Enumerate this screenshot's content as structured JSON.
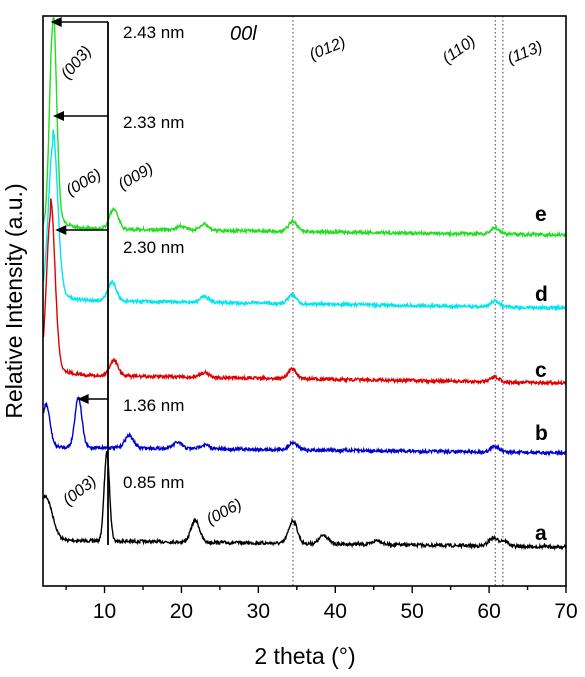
{
  "chart_data": {
    "type": "line",
    "xlabel": "2 theta (°)",
    "ylabel": "Relative Intensity (a.u.)",
    "xlim": [
      2,
      70
    ],
    "xticks": [
      "10",
      "20",
      "30",
      "40",
      "50",
      "60",
      "70"
    ],
    "grid": false,
    "colors": {
      "a": "#000000",
      "b": "#0000cc",
      "c": "#e00000",
      "d": "#00e5ee",
      "e": "#22dd22"
    },
    "series": [
      {
        "name": "a",
        "peaks": [
          {
            "x": 2.3,
            "rel": 0.5
          },
          {
            "x": 10.3,
            "rel": 1.0
          },
          {
            "x": 21.8,
            "rel": 0.25
          },
          {
            "x": 34.5,
            "rel": 0.26
          },
          {
            "x": 38.5,
            "rel": 0.1
          },
          {
            "x": 45.5,
            "rel": 0.05
          },
          {
            "x": 60.5,
            "rel": 0.09
          },
          {
            "x": 61.9,
            "rel": 0.06
          }
        ]
      },
      {
        "name": "b",
        "peaks": [
          {
            "x": 2.4,
            "rel": 0.85
          },
          {
            "x": 6.6,
            "rel": 1.0
          },
          {
            "x": 13.2,
            "rel": 0.25
          },
          {
            "x": 19.5,
            "rel": 0.12
          },
          {
            "x": 23.0,
            "rel": 0.08
          },
          {
            "x": 34.5,
            "rel": 0.15
          },
          {
            "x": 60.8,
            "rel": 0.12
          }
        ]
      },
      {
        "name": "c",
        "peaks": [
          {
            "x": 3.0,
            "rel": 1.0
          },
          {
            "x": 11.2,
            "rel": 0.1
          },
          {
            "x": 23.0,
            "rel": 0.03
          },
          {
            "x": 34.4,
            "rel": 0.06
          },
          {
            "x": 60.8,
            "rel": 0.03
          }
        ]
      },
      {
        "name": "d",
        "peaks": [
          {
            "x": 3.3,
            "rel": 1.0
          },
          {
            "x": 11.0,
            "rel": 0.12
          },
          {
            "x": 23.0,
            "rel": 0.04
          },
          {
            "x": 34.4,
            "rel": 0.06
          },
          {
            "x": 60.8,
            "rel": 0.04
          }
        ]
      },
      {
        "name": "e",
        "peaks": [
          {
            "x": 3.3,
            "rel": 1.0
          },
          {
            "x": 11.2,
            "rel": 0.1
          },
          {
            "x": 20.0,
            "rel": 0.02
          },
          {
            "x": 23.0,
            "rel": 0.03
          },
          {
            "x": 34.5,
            "rel": 0.05
          },
          {
            "x": 60.8,
            "rel": 0.03
          }
        ]
      }
    ],
    "reference_lines_x": [
      34.5,
      60.8,
      61.8
    ],
    "spacing_lines": [
      {
        "label": "2.43 nm",
        "x_from": 10.6,
        "x_to": 3.0
      },
      {
        "label": "2.33 nm",
        "x_from": 10.6,
        "x_to": 3.3
      },
      {
        "label": "2.30 nm",
        "x_from": 10.6,
        "x_to": 3.6
      },
      {
        "label": "1.36 nm",
        "x_from": 10.6,
        "x_to": 6.5
      },
      {
        "label": "0.85 nm",
        "x_from": null,
        "x_to": null
      }
    ],
    "annotations": {
      "order": "00l",
      "hkl_012": "(012)",
      "hkl_110": "(110)",
      "hkl_113": "(113)",
      "e_003": "(003)",
      "e_006": "(006)",
      "e_009": "(009)",
      "a_003": "(003)",
      "a_006": "(006)"
    }
  }
}
